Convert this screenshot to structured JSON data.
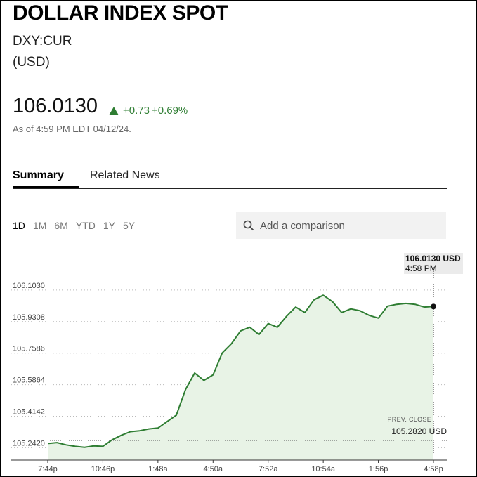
{
  "header": {
    "title": "DOLLAR INDEX SPOT",
    "ticker": "DXY:CUR",
    "currency": "(USD)"
  },
  "quote": {
    "price": "106.0130",
    "change_abs": "+0.73",
    "change_pct": "+0.69%",
    "as_of": "As of 4:59 PM EDT 04/12/24."
  },
  "tabs": [
    {
      "label": "Summary",
      "active": true
    },
    {
      "label": "Related News",
      "active": false
    }
  ],
  "ranges": [
    {
      "label": "1D",
      "active": true
    },
    {
      "label": "1M",
      "active": false
    },
    {
      "label": "6M",
      "active": false
    },
    {
      "label": "YTD",
      "active": false
    },
    {
      "label": "1Y",
      "active": false
    },
    {
      "label": "5Y",
      "active": false
    }
  ],
  "compare": {
    "placeholder": "Add a comparison",
    "icon": "search-icon"
  },
  "tooltip": {
    "value": "106.0130 USD",
    "time": "4:58 PM"
  },
  "prev_close": {
    "label": "PREV. CLOSE",
    "value": "105.2820 USD"
  },
  "colors": {
    "line": "#2e7d32",
    "fill": "#e8f3e6",
    "positive": "#2e7d32"
  },
  "chart_data": {
    "type": "area",
    "ylim": [
      105.19,
      106.16
    ],
    "yticks": [
      "106.1030",
      "105.9308",
      "105.7586",
      "105.5864",
      "105.4142",
      "105.2420"
    ],
    "xticks": [
      "7:44p",
      "10:46p",
      "1:48a",
      "4:50a",
      "7:52a",
      "10:54a",
      "1:56p",
      "4:58p"
    ],
    "prev_close": 105.282,
    "last": 106.013,
    "grid": true,
    "series": [
      {
        "x": [
          "7:44p",
          "8:14p",
          "8:44p",
          "9:14p",
          "9:44p",
          "10:14p",
          "10:46p",
          "11:16p",
          "11:46p",
          "12:16a",
          "12:46a",
          "1:16a",
          "1:48a",
          "2:18a",
          "2:48a",
          "3:18a",
          "3:48a",
          "4:18a",
          "4:50a",
          "5:20a",
          "5:50a",
          "6:20a",
          "6:50a",
          "7:20a",
          "7:52a",
          "8:22a",
          "8:52a",
          "9:22a",
          "9:52a",
          "10:22a",
          "10:54a",
          "11:24a",
          "11:54a",
          "12:24p",
          "12:54p",
          "1:24p",
          "1:56p",
          "2:26p",
          "2:56p",
          "3:26p",
          "3:56p",
          "4:26p",
          "4:58p"
        ],
        "values": [
          105.265,
          105.27,
          105.258,
          105.25,
          105.245,
          105.252,
          105.25,
          105.285,
          105.31,
          105.33,
          105.335,
          105.345,
          105.35,
          105.385,
          105.42,
          105.56,
          105.65,
          105.61,
          105.64,
          105.76,
          105.81,
          105.88,
          105.9,
          105.86,
          105.92,
          105.9,
          105.96,
          106.01,
          105.98,
          106.05,
          106.075,
          106.04,
          105.98,
          106.0,
          105.99,
          105.965,
          105.95,
          106.015,
          106.025,
          106.03,
          106.025,
          106.01,
          106.013
        ]
      }
    ]
  }
}
